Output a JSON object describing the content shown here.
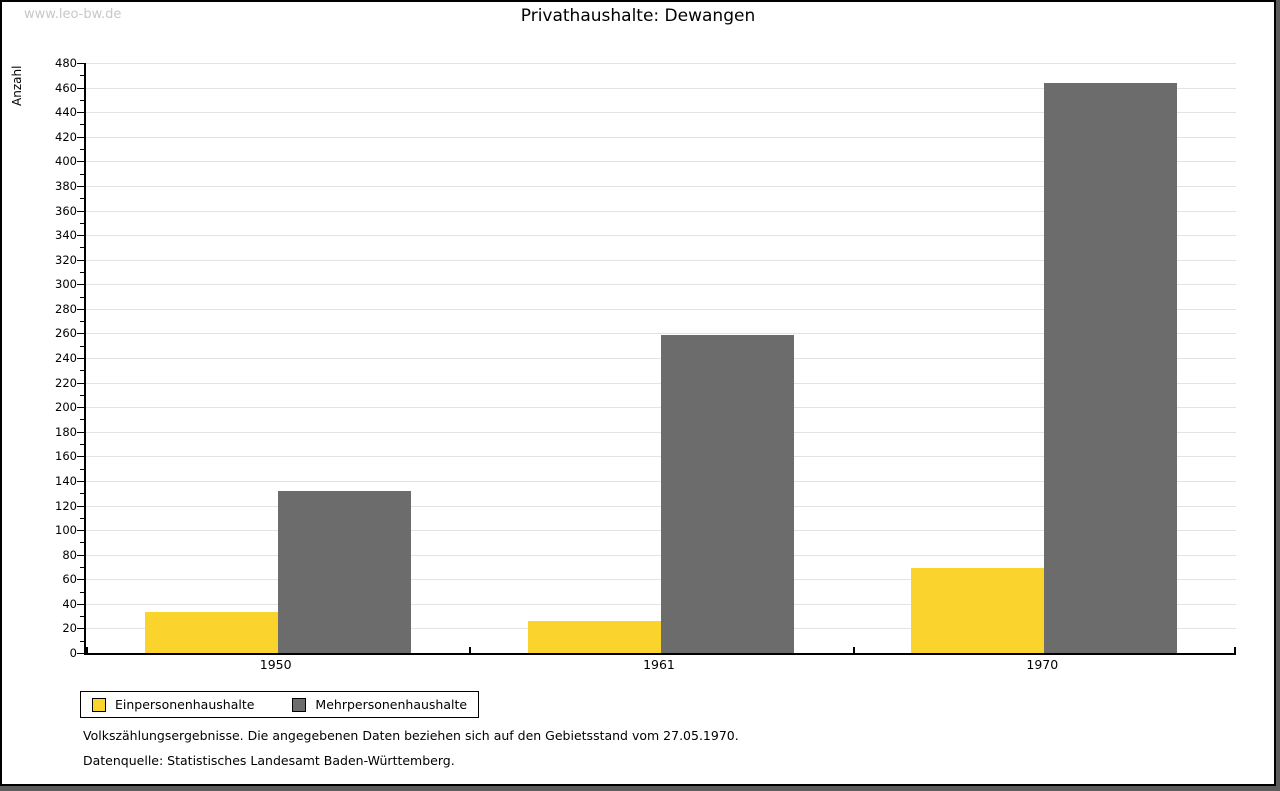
{
  "watermark": "www.leo-bw.de",
  "title": "Privathaushalte: Dewangen",
  "chart_data": {
    "type": "bar",
    "categories": [
      "1950",
      "1961",
      "1970"
    ],
    "series": [
      {
        "name": "Einpersonenhaushalte",
        "color": "#fbd32d",
        "values": [
          33,
          26,
          69
        ]
      },
      {
        "name": "Mehrpersonenhaushalte",
        "color": "#6c6c6c",
        "values": [
          132,
          259,
          464
        ]
      }
    ],
    "title": "Privathaushalte: Dewangen",
    "xlabel": "",
    "ylabel": "Anzahl",
    "ylim": [
      0,
      480
    ],
    "y_major_step": 20,
    "y_minor_step": 10,
    "grid": "horizontal-major",
    "gridline_color": "#e3e3e3",
    "legend_position": "bottom-left"
  },
  "footer": {
    "line1": "Volkszählungsergebnisse. Die angegebenen Daten beziehen sich auf den Gebietsstand vom 27.05.1970.",
    "line2": "Datenquelle: Statistisches Landesamt Baden-Württemberg."
  }
}
